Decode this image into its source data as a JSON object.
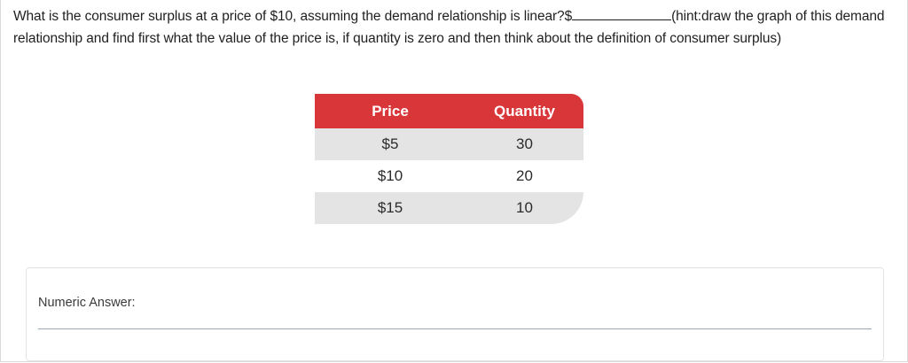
{
  "question": {
    "part1": "What is the consumer surplus at a price of $10, assuming the demand relationship is linear?$",
    "part2": "(hint:draw the graph of this demand relationship and find first what the value of the price is, if quantity is zero and then think about the definition of consumer surplus)"
  },
  "table": {
    "headers": [
      "Price",
      "Quantity"
    ],
    "rows": [
      {
        "price": "$5",
        "quantity": "30"
      },
      {
        "price": "$10",
        "quantity": "20"
      },
      {
        "price": "$15",
        "quantity": "10"
      }
    ],
    "header_color": "#d9363a",
    "stripe_color": "#e4e4e4"
  },
  "answer": {
    "label": "Numeric Answer:",
    "value": ""
  }
}
